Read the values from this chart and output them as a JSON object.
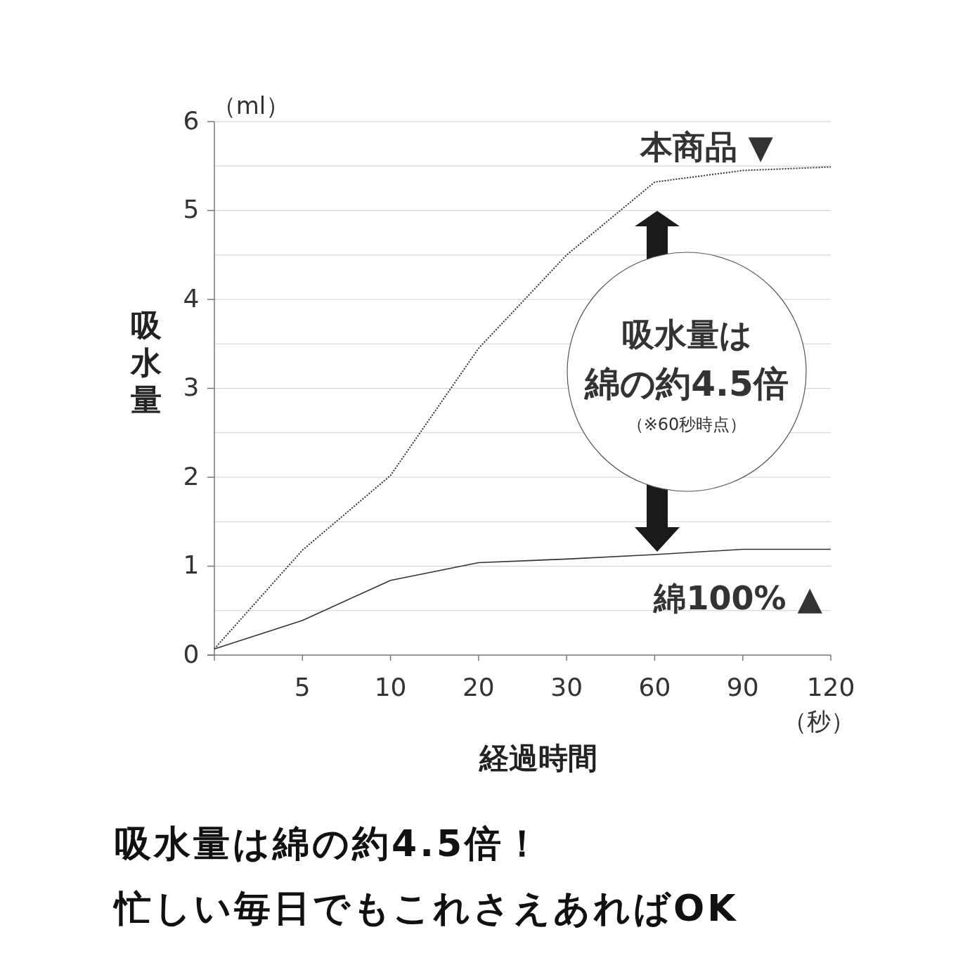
{
  "chart_data": {
    "type": "line",
    "categories": [
      null,
      "5",
      "10",
      "20",
      "30",
      "60",
      "90",
      "120"
    ],
    "series": [
      {
        "name": "本商品 ▼",
        "color": "#333333",
        "line_style": "dotted",
        "values": [
          0.07,
          1.18,
          2.02,
          3.45,
          4.5,
          5.32,
          5.45,
          5.49
        ]
      },
      {
        "name": "綿100% ▲",
        "color": "#333333",
        "line_style": "solid",
        "values": [
          0.07,
          0.39,
          0.84,
          1.04,
          1.08,
          1.13,
          1.19,
          1.19
        ]
      }
    ],
    "ylim": [
      0,
      6
    ],
    "yticks": [
      0,
      {
        "value": 0.5,
        "label": null
      },
      1,
      {
        "value": 1.5,
        "label": null
      },
      2,
      {
        "value": 2.5,
        "label": null
      },
      3,
      {
        "value": 3.5,
        "label": null
      },
      4,
      {
        "value": 4.5,
        "label": null
      },
      5,
      {
        "value": 5.5,
        "label": null
      },
      6
    ],
    "grid": "y",
    "legend": false,
    "marker": "none",
    "xlabel": "経過時間",
    "ylabel": "吸水量",
    "annotations": [
      "（ml）",
      "（秒）",
      "吸水量は",
      "綿の約4.5倍",
      "（※60秒時点）",
      "吸水量は綿の約4.5倍！",
      "忙しい毎日でもこれさえあればOK"
    ]
  }
}
